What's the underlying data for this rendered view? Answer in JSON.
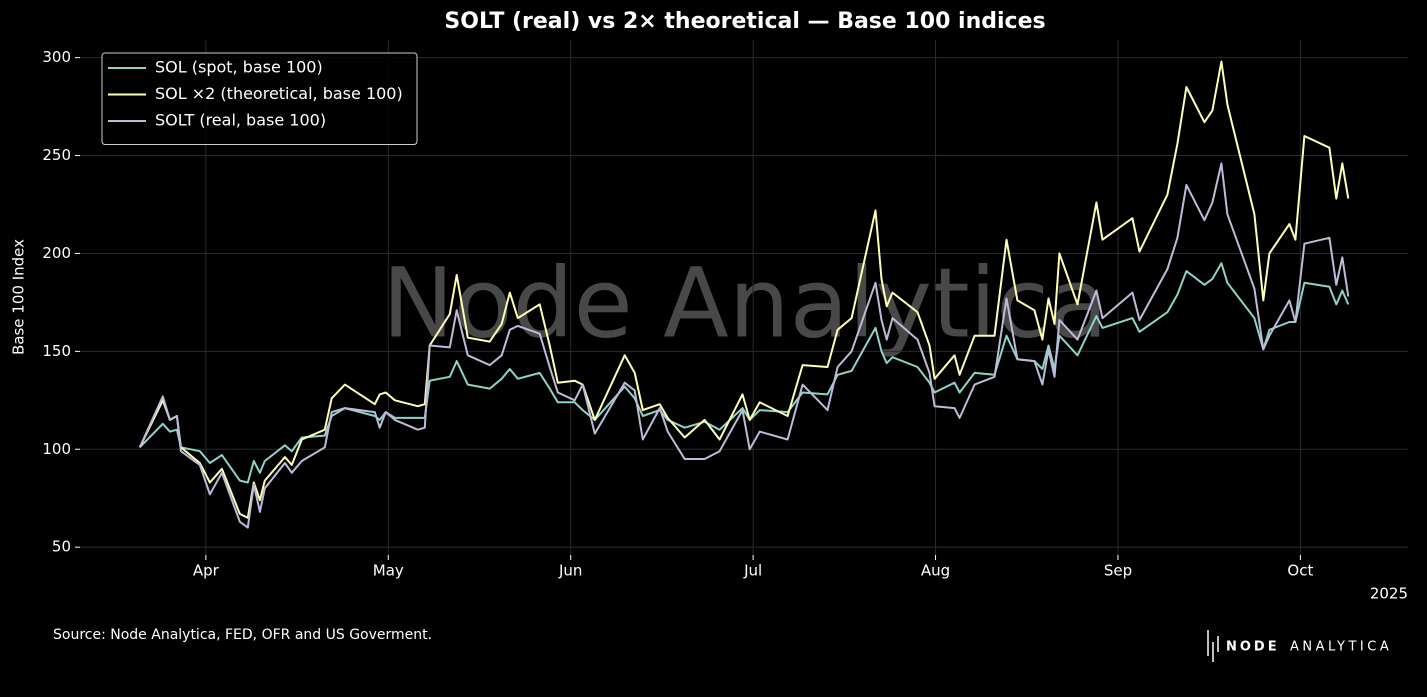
{
  "chart_data": {
    "type": "line",
    "title": "SOLT (real) vs 2× theoretical — Base 100 indices",
    "ylabel": "Base 100 Index",
    "x_offset_label": "2025",
    "watermark": "Node Analytica",
    "source": "Source: Node Analytica, FED, OFR and US Goverment.",
    "logo": [
      "NODE",
      "ANALYTICA"
    ],
    "grid": true,
    "legend": "upper left",
    "xlim": [
      3.31,
      10.59
    ],
    "xticks": [
      {
        "value": 4,
        "label": "Apr"
      },
      {
        "value": 5,
        "label": "May"
      },
      {
        "value": 6,
        "label": "Jun"
      },
      {
        "value": 7,
        "label": "Jul"
      },
      {
        "value": 8,
        "label": "Aug"
      },
      {
        "value": 9,
        "label": "Sep"
      },
      {
        "value": 10,
        "label": "Oct"
      }
    ],
    "ylim": [
      46,
      309
    ],
    "yticks": [
      50,
      100,
      150,
      200,
      250,
      300
    ],
    "x": [
      3.638,
      3.764,
      3.803,
      3.841,
      3.863,
      3.967,
      4.022,
      4.088,
      4.186,
      4.23,
      4.263,
      4.296,
      4.323,
      4.433,
      4.471,
      4.526,
      4.652,
      4.69,
      4.762,
      4.926,
      4.953,
      4.986,
      5.036,
      5.162,
      5.2,
      5.227,
      5.337,
      5.375,
      5.436,
      5.556,
      5.622,
      5.666,
      5.71,
      5.83,
      5.885,
      5.929,
      6.022,
      6.066,
      6.132,
      6.296,
      6.351,
      6.395,
      6.488,
      6.532,
      6.625,
      6.734,
      6.816,
      6.942,
      6.981,
      7.036,
      7.189,
      7.271,
      7.408,
      7.463,
      7.54,
      7.671,
      7.704,
      7.732,
      7.764,
      7.901,
      7.967,
      7.995,
      8.104,
      8.132,
      8.214,
      8.323,
      8.389,
      8.449,
      8.542,
      8.586,
      8.619,
      8.652,
      8.679,
      8.778,
      8.882,
      8.915,
      9.079,
      9.118,
      9.271,
      9.326,
      9.375,
      9.474,
      9.518,
      9.567,
      9.6,
      9.748,
      9.797,
      9.83,
      9.94,
      9.973,
      10.022,
      10.159,
      10.197,
      10.23,
      10.263
    ],
    "series": [
      {
        "name": "SOL (spot, base 100)",
        "color": "#8dd3c7",
        "values": [
          101,
          113,
          109,
          110,
          101,
          99,
          93,
          97,
          84,
          83,
          94,
          88,
          94,
          102,
          99,
          106,
          107,
          117,
          121,
          117,
          115,
          119,
          116,
          116,
          116,
          135,
          137,
          145,
          133,
          131,
          136,
          141,
          136,
          139,
          131,
          124,
          124,
          120,
          115,
          132,
          126,
          117,
          120,
          115,
          111,
          114,
          110,
          121,
          115,
          120,
          119,
          129,
          128,
          138,
          140,
          162,
          150,
          144,
          147,
          142,
          134,
          129,
          134,
          129,
          139,
          138,
          158,
          146,
          145,
          141,
          153,
          141,
          158,
          148,
          168,
          162,
          167,
          160,
          170,
          179,
          191,
          184,
          187,
          195,
          185,
          167,
          151,
          161,
          165,
          165,
          185,
          183,
          174,
          181,
          174
        ]
      },
      {
        "name": "SOL ×2 (theoretical, base 100)",
        "color": "#ffffb3",
        "values": [
          101,
          125,
          115,
          117,
          101,
          93,
          83,
          90,
          67,
          65,
          83,
          74,
          84,
          96,
          92,
          105,
          110,
          126,
          133,
          123,
          128,
          129,
          125,
          122,
          123,
          153,
          169,
          189,
          157,
          155,
          164,
          180,
          167,
          174,
          153,
          134,
          135,
          133,
          115,
          148,
          139,
          120,
          123,
          116,
          106,
          115,
          105,
          128,
          115,
          124,
          117,
          143,
          142,
          161,
          167,
          222,
          187,
          173,
          180,
          170,
          153,
          136,
          148,
          138,
          158,
          158,
          207,
          176,
          171,
          156,
          177,
          164,
          200,
          174,
          226,
          207,
          218,
          201,
          230,
          256,
          285,
          267,
          273,
          298,
          276,
          220,
          176,
          200,
          215,
          207,
          260,
          254,
          228,
          246,
          228
        ]
      },
      {
        "name": "SOLT (real, base 100)",
        "color": "#bebada",
        "values": [
          101,
          127,
          115,
          117,
          99,
          92,
          77,
          88,
          63,
          60,
          82,
          68,
          80,
          93,
          88,
          94,
          101,
          119,
          121,
          119,
          111,
          119,
          115,
          110,
          111,
          153,
          152,
          171,
          148,
          143,
          148,
          161,
          163,
          159,
          142,
          129,
          125,
          133,
          108,
          134,
          130,
          105,
          121,
          109,
          95,
          95,
          99,
          120,
          100,
          109,
          105,
          133,
          120,
          142,
          150,
          185,
          166,
          156,
          167,
          156,
          139,
          122,
          121,
          116,
          133,
          137,
          177,
          146,
          145,
          133,
          151,
          137,
          166,
          156,
          181,
          167,
          180,
          166,
          192,
          208,
          235,
          217,
          226,
          246,
          220,
          182,
          151,
          158,
          176,
          165,
          205,
          208,
          184,
          198,
          178
        ]
      }
    ]
  }
}
